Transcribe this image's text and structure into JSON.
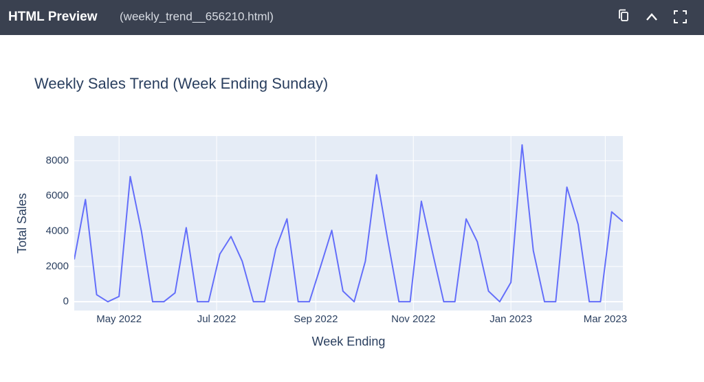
{
  "header": {
    "title": "HTML Preview",
    "file": "(weekly_trend__656210.html)"
  },
  "chart_data": {
    "type": "line",
    "title": "Weekly Sales Trend (Week Ending Sunday)",
    "x_label": "Week Ending",
    "y_label": "Total Sales",
    "x": [
      "2022-04-03",
      "2022-04-10",
      "2022-04-17",
      "2022-04-24",
      "2022-05-01",
      "2022-05-08",
      "2022-05-15",
      "2022-05-22",
      "2022-05-29",
      "2022-06-05",
      "2022-06-12",
      "2022-06-19",
      "2022-06-26",
      "2022-07-03",
      "2022-07-10",
      "2022-07-17",
      "2022-07-24",
      "2022-07-31",
      "2022-08-07",
      "2022-08-14",
      "2022-08-21",
      "2022-08-28",
      "2022-09-04",
      "2022-09-11",
      "2022-09-18",
      "2022-09-25",
      "2022-10-02",
      "2022-10-09",
      "2022-10-16",
      "2022-10-23",
      "2022-10-30",
      "2022-11-06",
      "2022-11-13",
      "2022-11-20",
      "2022-11-27",
      "2022-12-04",
      "2022-12-11",
      "2022-12-18",
      "2022-12-25",
      "2023-01-01",
      "2023-01-08",
      "2023-01-15",
      "2023-01-22",
      "2023-01-29",
      "2023-02-05",
      "2023-02-12",
      "2023-02-19",
      "2023-02-26",
      "2023-03-05",
      "2023-03-12"
    ],
    "series": [
      {
        "name": "Total Sales",
        "color": "#636efa",
        "values": [
          2400,
          5800,
          400,
          0,
          300,
          7100,
          4000,
          0,
          0,
          500,
          4200,
          0,
          0,
          2700,
          3700,
          2300,
          0,
          0,
          3000,
          4700,
          0,
          0,
          2000,
          4050,
          600,
          0,
          2300,
          7200,
          3500,
          0,
          0,
          5700,
          2800,
          0,
          0,
          4700,
          3400,
          600,
          0,
          1100,
          8900,
          2900,
          0,
          0,
          6500,
          4400,
          0,
          0,
          5100,
          4550
        ]
      }
    ],
    "xlim": [
      "2022-04-03",
      "2023-03-12"
    ],
    "xticks": [
      {
        "value": "2022-05-01",
        "label": "May 2022"
      },
      {
        "value": "2022-07-01",
        "label": "Jul 2022"
      },
      {
        "value": "2022-09-01",
        "label": "Sep 2022"
      },
      {
        "value": "2022-11-01",
        "label": "Nov 2022"
      },
      {
        "value": "2023-01-01",
        "label": "Jan 2023"
      },
      {
        "value": "2023-03-01",
        "label": "Mar 2023"
      }
    ],
    "ylim": [
      -500,
      9400
    ],
    "yticks": [
      0,
      2000,
      4000,
      6000,
      8000
    ],
    "grid": true
  }
}
